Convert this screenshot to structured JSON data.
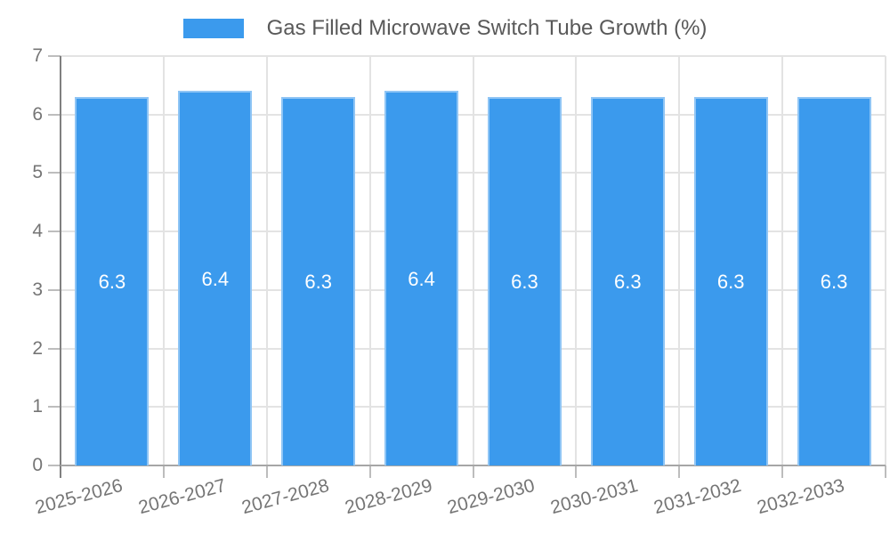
{
  "legend": {
    "label": "Gas Filled Microwave Switch Tube Growth (%)",
    "swatch_color": "#3B9AED"
  },
  "chart_data": {
    "type": "bar",
    "title": "Gas Filled Microwave Switch Tube Growth (%)",
    "categories": [
      "2025-2026",
      "2026-2027",
      "2027-2028",
      "2028-2029",
      "2029-2030",
      "2030-2031",
      "2031-2032",
      "2032-2033"
    ],
    "values": [
      6.3,
      6.4,
      6.3,
      6.4,
      6.3,
      6.3,
      6.3,
      6.3
    ],
    "xlabel": "",
    "ylabel": "",
    "ylim": [
      0,
      7
    ],
    "yticks": [
      0,
      1,
      2,
      3,
      4,
      5,
      6,
      7
    ],
    "grid": true,
    "legend_position": "top-center",
    "value_label_decimals": 1,
    "x_label_rotation_deg": -15,
    "colors": {
      "bar_fill": "#3B9AED",
      "bar_edge": "#8FC5F5",
      "value_label": "#FFFFFF",
      "grid_line": "#E3E3E3",
      "y_axis_line": "#808080",
      "x_axis_line": "#A6A6A6",
      "tick_mark": "#BDBDBD",
      "tick_label": "#757575",
      "legend_text": "#595959",
      "background": "#FFFFFF"
    }
  }
}
